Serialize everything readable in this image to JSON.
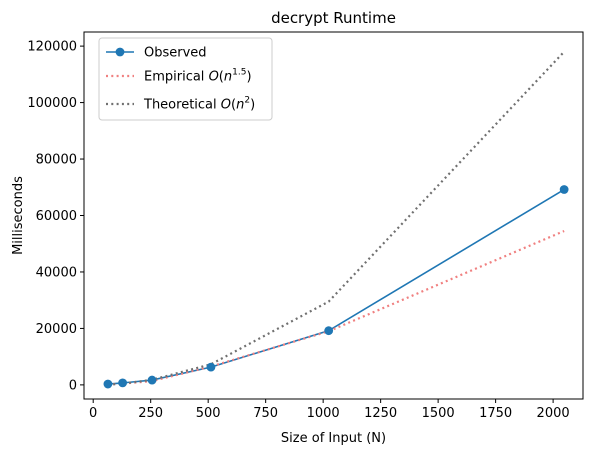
{
  "chart_data": {
    "type": "line",
    "title": "decrypt Runtime",
    "xlabel": "Size of Input (N)",
    "ylabel": "Milliseconds",
    "xlim": [
      -40,
      2130
    ],
    "ylim": [
      -5000,
      125000
    ],
    "xticks": [
      0,
      250,
      500,
      750,
      1000,
      1250,
      1500,
      1750,
      2000
    ],
    "yticks": [
      0,
      20000,
      40000,
      60000,
      80000,
      100000,
      120000
    ],
    "x": [
      64,
      128,
      256,
      512,
      1024,
      2048
    ],
    "series": [
      {
        "name": "Observed",
        "style": "solid-marker",
        "color": "#1f77b4",
        "values": [
          300,
          700,
          1700,
          6300,
          19200,
          69200
        ]
      },
      {
        "name": "Empirical O(n^1.5)",
        "name_base": "Empirical ",
        "name_func": "O",
        "name_var": "n",
        "name_exp": "1.5",
        "style": "dotted",
        "color": "#f08080",
        "values": [
          150,
          450,
          1350,
          6500,
          19000,
          54500
        ]
      },
      {
        "name": "Theoretical O(n^2)",
        "name_base": "Theoretical ",
        "name_func": "O",
        "name_var": "n",
        "name_exp": "2",
        "style": "dotted",
        "color": "#707070",
        "values": [
          100,
          450,
          1800,
          7300,
          29500,
          118000
        ]
      }
    ],
    "grid": false,
    "legend_position": "top-left"
  }
}
